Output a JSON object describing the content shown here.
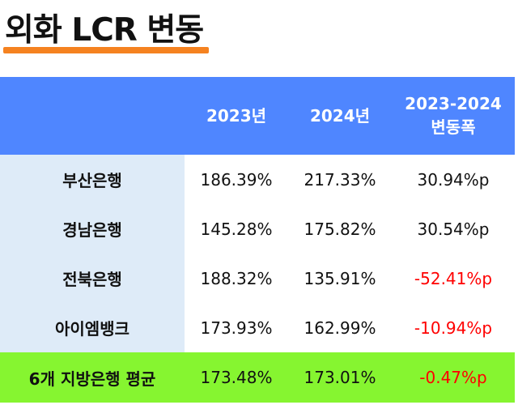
{
  "title": "외화 LCR 변동",
  "colors": {
    "accent_underline": "#f58220",
    "header_bg": "#4f86ff",
    "bank_col_bg": "#deebf8",
    "average_row_bg": "#86f530",
    "negative_text": "#ff0000"
  },
  "table": {
    "headers": {
      "bank": "",
      "y2023": "2023년",
      "y2024": "2024년",
      "change_line1": "2023-2024",
      "change_line2": "변동폭"
    },
    "rows": [
      {
        "bank": "부산은행",
        "y2023": "186.39%",
        "y2024": "217.33%",
        "change": "30.94%p",
        "negative": false
      },
      {
        "bank": "경남은행",
        "y2023": "145.28%",
        "y2024": "175.82%",
        "change": "30.54%p",
        "negative": false
      },
      {
        "bank": "전북은행",
        "y2023": "188.32%",
        "y2024": "135.91%",
        "change": "-52.41%p",
        "negative": true
      },
      {
        "bank": "아이엠뱅크",
        "y2023": "173.93%",
        "y2024": "162.99%",
        "change": "-10.94%p",
        "negative": true
      }
    ],
    "average": {
      "bank": "6개 지방은행 평균",
      "y2023": "173.48%",
      "y2024": "173.01%",
      "change": "-0.47%p",
      "negative": true
    }
  }
}
